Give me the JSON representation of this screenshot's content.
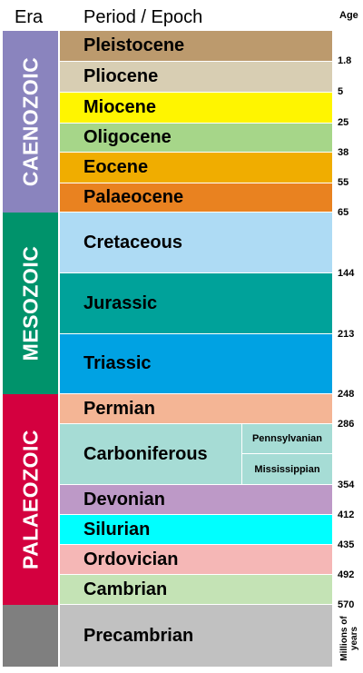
{
  "header": {
    "era": "Era",
    "period": "Period / Epoch",
    "age": "Age"
  },
  "eras": [
    {
      "name": "CAENOZOIC",
      "color": "#8a84be"
    },
    {
      "name": "MESOZOIC",
      "color": "#00936b"
    },
    {
      "name": "PALAEOZOIC",
      "color": "#d4003f"
    },
    {
      "name": "",
      "color": "#7f7f7f"
    }
  ],
  "periods": [
    {
      "name": "Pleistocene",
      "color": "#bc9a6d"
    },
    {
      "name": "Pliocene",
      "color": "#d8ceb3"
    },
    {
      "name": "Miocene",
      "color": "#fff500"
    },
    {
      "name": "Oligocene",
      "color": "#a6d689"
    },
    {
      "name": "Eocene",
      "color": "#f0ad00"
    },
    {
      "name": "Palaeocene",
      "color": "#e98220"
    },
    {
      "name": "Cretaceous",
      "color": "#aedbf4"
    },
    {
      "name": "Jurassic",
      "color": "#00a29a"
    },
    {
      "name": "Triassic",
      "color": "#00a2e3"
    },
    {
      "name": "Permian",
      "color": "#f4b595"
    },
    {
      "name": "Carboniferous",
      "color": "#a6dcd5"
    },
    {
      "name": "Devonian",
      "color": "#bd99c7"
    },
    {
      "name": "Silurian",
      "color": "#00ffff"
    },
    {
      "name": "Ordovician",
      "color": "#f5b7b6"
    },
    {
      "name": "Cambrian",
      "color": "#c4e3b5"
    },
    {
      "name": "Precambrian",
      "color": "#c1c1c1"
    }
  ],
  "subperiods": [
    {
      "name": "Pennsylvanian"
    },
    {
      "name": "Mississippian"
    }
  ],
  "ages": [
    "1.8",
    "5",
    "25",
    "38",
    "55",
    "65",
    "144",
    "213",
    "248",
    "286",
    "354",
    "412",
    "435",
    "492",
    "570"
  ],
  "age_units": "Millions of years"
}
